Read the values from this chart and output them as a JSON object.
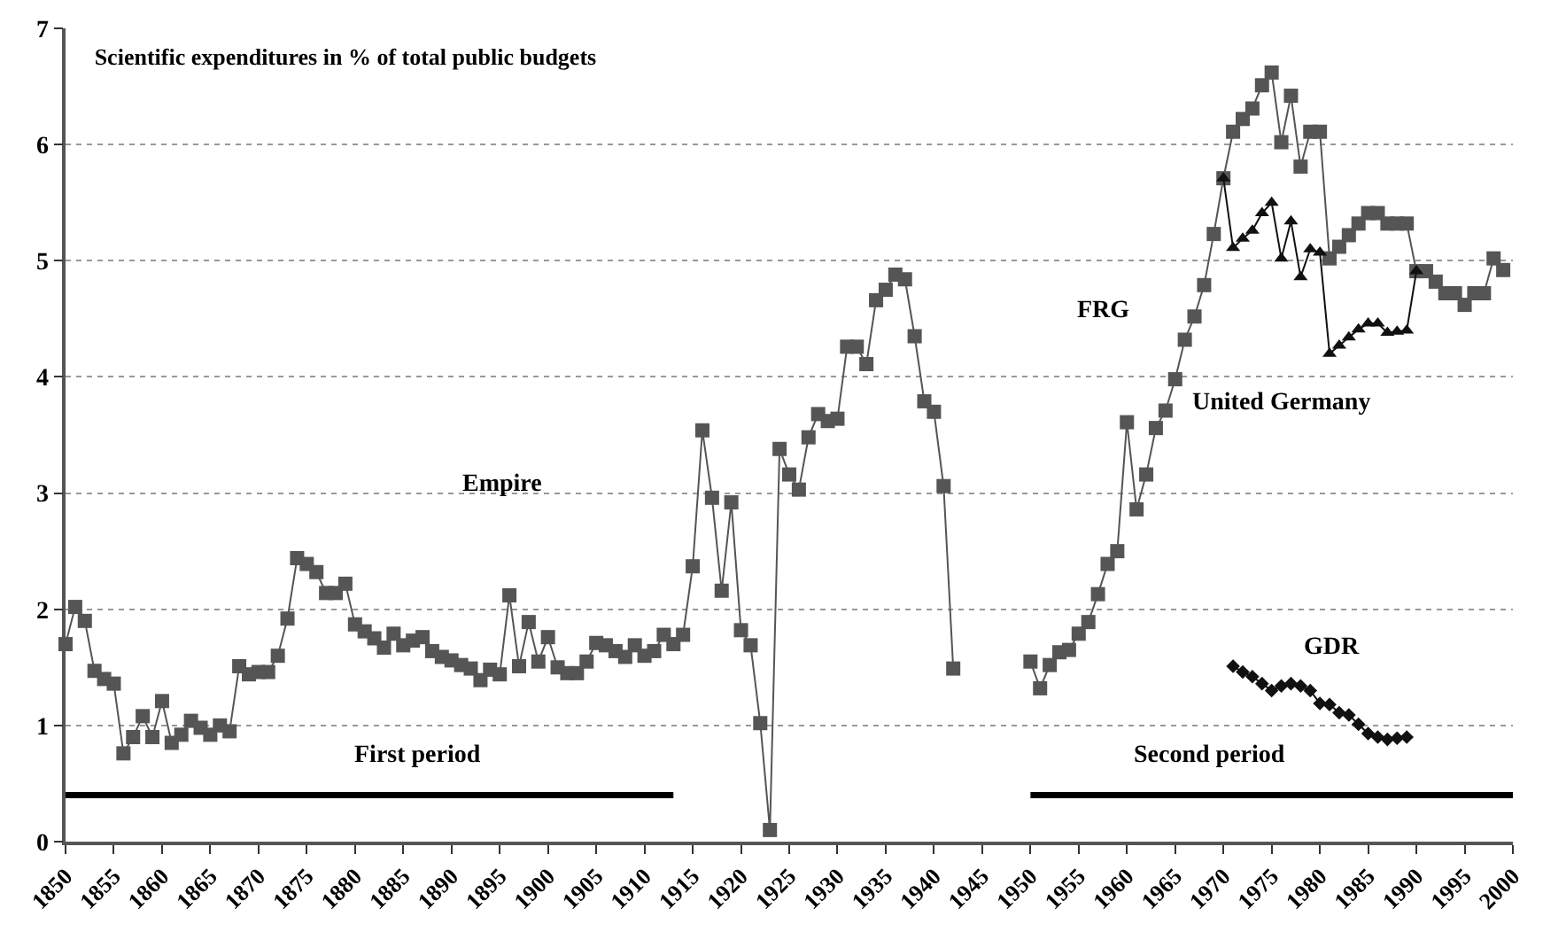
{
  "chart_data": {
    "type": "line",
    "title": "Scientific expenditures in % of total public budgets",
    "xlim": [
      1850,
      2000
    ],
    "xticks": [
      1850,
      1855,
      1860,
      1865,
      1870,
      1875,
      1880,
      1885,
      1890,
      1895,
      1900,
      1905,
      1910,
      1915,
      1920,
      1925,
      1930,
      1935,
      1940,
      1945,
      1950,
      1955,
      1960,
      1965,
      1970,
      1975,
      1980,
      1985,
      1990,
      1995,
      2000
    ],
    "ylim": [
      0,
      7
    ],
    "yticks": [
      0,
      1,
      2,
      3,
      4,
      5,
      6,
      7
    ],
    "grid": "y",
    "series": [
      {
        "marker": "square",
        "color": "#555555",
        "x": [
          1850,
          1851,
          1852,
          1853,
          1854,
          1855,
          1856,
          1857,
          1858,
          1859,
          1860,
          1861,
          1862,
          1863,
          1864,
          1865,
          1866,
          1867,
          1868,
          1869,
          1870,
          1871,
          1872,
          1873,
          1874,
          1875,
          1876,
          1877,
          1878,
          1879,
          1880,
          1881,
          1882,
          1883,
          1884,
          1885,
          1886,
          1887,
          1888,
          1889,
          1890,
          1891,
          1892,
          1893,
          1894,
          1895,
          1896,
          1897,
          1898,
          1899,
          1900,
          1901,
          1902,
          1903,
          1904,
          1905,
          1906,
          1907,
          1908,
          1909,
          1910,
          1911,
          1912,
          1913,
          1914,
          1915,
          1916,
          1917,
          1918,
          1919,
          1920,
          1921,
          1922,
          1923,
          1924,
          1925,
          1926,
          1927,
          1928,
          1929,
          1930,
          1931,
          1932,
          1933,
          1934,
          1935,
          1936,
          1937,
          1938,
          1939,
          1940,
          1941,
          1942,
          1946,
          1950,
          1951,
          1952,
          1953,
          1954,
          1955,
          1956,
          1957,
          1958,
          1959,
          1960,
          1961,
          1962,
          1963,
          1964,
          1965,
          1966,
          1967,
          1968,
          1969,
          1970,
          1971,
          1972,
          1973,
          1974,
          1975,
          1976,
          1977,
          1978,
          1979,
          1980,
          1981,
          1982,
          1983,
          1984,
          1985,
          1986,
          1987,
          1988,
          1989,
          1990,
          1991,
          1992,
          1993,
          1994,
          1995,
          1996,
          1997,
          1998,
          1999
        ],
        "values": [
          1.7,
          2.02,
          1.9,
          1.47,
          1.4,
          1.36,
          0.76,
          0.9,
          1.08,
          0.9,
          1.21,
          0.85,
          0.92,
          1.04,
          0.98,
          0.92,
          1.0,
          0.95,
          1.51,
          1.44,
          1.46,
          1.46,
          1.6,
          1.92,
          2.44,
          2.39,
          2.32,
          2.14,
          2.14,
          2.22,
          1.87,
          1.81,
          1.75,
          1.67,
          1.79,
          1.69,
          1.73,
          1.76,
          1.64,
          1.59,
          1.56,
          1.52,
          1.49,
          1.39,
          1.48,
          1.44,
          2.12,
          1.51,
          1.89,
          1.55,
          1.76,
          1.5,
          1.45,
          1.45,
          1.55,
          1.71,
          1.69,
          1.64,
          1.59,
          1.69,
          1.6,
          1.64,
          1.78,
          1.7,
          1.78,
          2.37,
          3.54,
          2.96,
          2.16,
          2.92,
          1.82,
          1.69,
          1.02,
          0.1,
          3.38,
          3.16,
          3.03,
          3.48,
          3.68,
          3.62,
          3.64,
          4.26,
          4.26,
          4.11,
          4.66,
          4.75,
          4.88,
          4.84,
          4.35,
          3.79,
          3.7,
          3.06,
          1.49,
          null,
          1.55,
          1.32,
          1.52,
          1.63,
          1.65,
          1.79,
          1.89,
          2.13,
          2.39,
          2.5,
          3.61,
          2.86,
          3.16,
          3.56,
          3.71,
          3.98,
          4.32,
          4.52,
          4.79,
          5.23,
          5.71,
          6.11,
          6.22,
          6.31,
          6.51,
          6.62,
          6.02,
          6.42,
          5.81,
          6.11,
          6.11,
          5.02,
          5.12,
          5.22,
          5.32,
          5.41,
          5.41,
          5.32,
          5.32,
          5.32,
          4.91,
          4.91,
          4.82,
          4.72,
          4.72,
          4.62,
          4.72,
          4.72,
          5.02,
          4.92
        ]
      },
      {
        "marker": "triangle",
        "color": "#111111",
        "x": [
          1970,
          1971,
          1972,
          1973,
          1974,
          1975,
          1976,
          1977,
          1978,
          1979,
          1980,
          1981,
          1982,
          1983,
          1984,
          1985,
          1986,
          1987,
          1988,
          1989,
          1990
        ],
        "values": [
          5.71,
          5.11,
          5.19,
          5.26,
          5.41,
          5.5,
          5.02,
          5.34,
          4.86,
          5.1,
          5.07,
          4.2,
          4.27,
          4.34,
          4.41,
          4.46,
          4.46,
          4.38,
          4.39,
          4.4,
          4.91
        ]
      },
      {
        "marker": "diamond",
        "color": "#111111",
        "x": [
          1971,
          1972,
          1973,
          1974,
          1975,
          1976,
          1977,
          1978,
          1979,
          1980,
          1981,
          1982,
          1983,
          1984,
          1985,
          1986,
          1987,
          1988,
          1989
        ],
        "values": [
          1.51,
          1.46,
          1.42,
          1.36,
          1.3,
          1.34,
          1.36,
          1.34,
          1.3,
          1.19,
          1.18,
          1.11,
          1.09,
          1.01,
          0.93,
          0.9,
          0.88,
          0.89,
          0.9
        ]
      },
      {
        "marker": "none",
        "color": "#000000",
        "x": [
          1850,
          1913
        ],
        "values": [
          0.4,
          0.4
        ]
      },
      {
        "marker": "none",
        "color": "#000000",
        "x": [
          1950,
          2000
        ],
        "values": [
          0.4,
          0.4
        ]
      }
    ],
    "annotations": [
      "Empire",
      "First period",
      "FRG",
      "United Germany",
      "GDR",
      "Second period"
    ]
  }
}
